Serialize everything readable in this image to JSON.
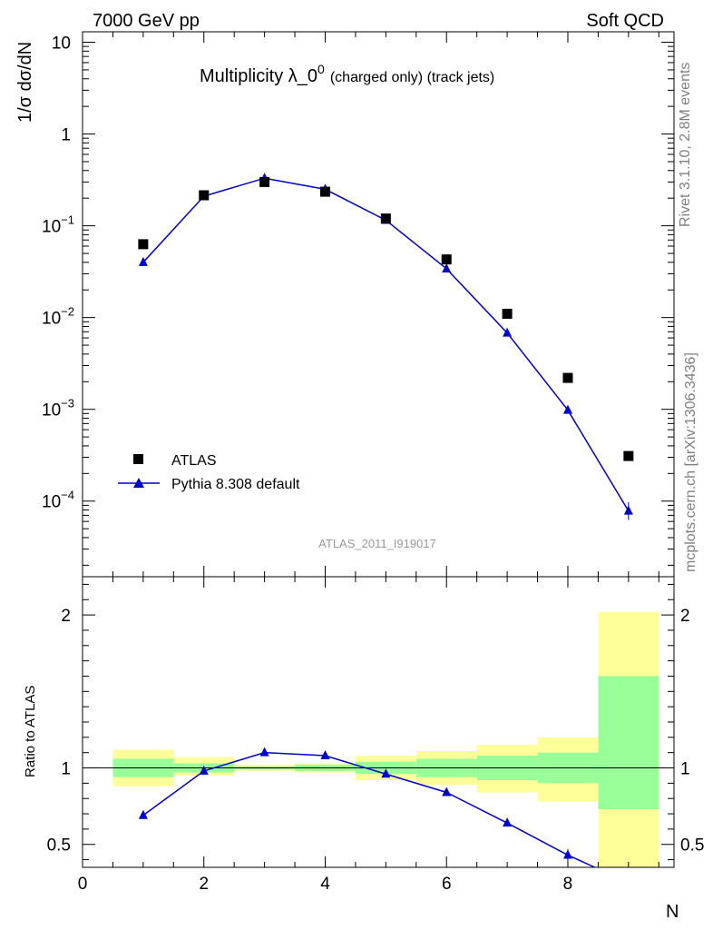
{
  "header": {
    "left": "7000 GeV pp",
    "right": "Soft QCD"
  },
  "title": {
    "main": "Multiplicity λ_0",
    "superscript": "0",
    "suffix": "(charged only) (track jets)"
  },
  "watermark": "ATLAS_2011_I919017",
  "side_labels": {
    "rivet": "Rivet 3.1.10,  2.8M events",
    "mcplots": "mcplots.cern.ch [arXiv:1306.3436]"
  },
  "axes": {
    "top_ylabel": "1/σ dσ/dN",
    "bottom_ylabel": "Ratio to ATLAS",
    "xlabel": "N",
    "x_ticks": [
      "0",
      "2",
      "4",
      "6",
      "8"
    ],
    "top_y_ticks": [
      {
        "base": "10",
        "exp": ""
      },
      {
        "base": "1",
        "exp": ""
      },
      {
        "base": "10",
        "exp": "−1"
      },
      {
        "base": "10",
        "exp": "−2"
      },
      {
        "base": "10",
        "exp": "−3"
      },
      {
        "base": "10",
        "exp": "−4"
      }
    ],
    "ratio_ticks": [
      "2",
      "1",
      "0.5"
    ]
  },
  "legend": {
    "atlas": "ATLAS",
    "pythia": "Pythia 8.308 default"
  },
  "colors": {
    "mc": "#0000cc",
    "band_inner": "#99ff99",
    "band_outer": "#ffff99",
    "data": "#000000"
  },
  "chart_data": [
    {
      "type": "scatter",
      "title": "Multiplicity λ_0^0 (charged only) (track jets)",
      "xlabel": "N",
      "ylabel": "1/σ dσ/dN",
      "yscale": "log",
      "xlim": [
        0,
        9.75
      ],
      "ylim": [
        1.5e-05,
        13
      ],
      "x": [
        1,
        2,
        3,
        4,
        5,
        6,
        7,
        8,
        9
      ],
      "series": [
        {
          "name": "ATLAS",
          "values": [
            0.063,
            0.215,
            0.3,
            0.235,
            0.12,
            0.043,
            0.011,
            0.0022,
            0.00031
          ]
        },
        {
          "name": "Pythia 8.308 default",
          "values": [
            0.04,
            0.21,
            0.33,
            0.25,
            0.115,
            0.034,
            0.0068,
            0.00098,
            7.8e-05
          ]
        }
      ]
    },
    {
      "type": "line",
      "ylabel": "Ratio to ATLAS",
      "xlabel": "N",
      "xlim": [
        0,
        9.75
      ],
      "ylim": [
        0.35,
        2.25
      ],
      "x": [
        1,
        2,
        3,
        4,
        5,
        6,
        7,
        8,
        9
      ],
      "series": [
        {
          "name": "Pythia 8.308 default",
          "values": [
            0.69,
            0.98,
            1.1,
            1.08,
            0.96,
            0.84,
            0.64,
            0.43,
            0.25
          ]
        }
      ],
      "bands": {
        "edges": [
          0.5,
          1.5,
          2.5,
          3.5,
          4.5,
          5.5,
          6.5,
          7.5,
          8.5,
          9.5
        ],
        "inner_low": [
          0.94,
          0.97,
          0.99,
          0.98,
          0.96,
          0.94,
          0.92,
          0.9,
          0.73
        ],
        "inner_high": [
          1.06,
          1.03,
          1.01,
          1.02,
          1.04,
          1.06,
          1.08,
          1.1,
          1.6
        ],
        "outer_low": [
          0.88,
          0.95,
          0.98,
          0.97,
          0.92,
          0.89,
          0.84,
          0.78,
          0.35
        ],
        "outer_high": [
          1.12,
          1.07,
          1.02,
          1.03,
          1.08,
          1.11,
          1.15,
          1.2,
          2.02
        ]
      }
    }
  ]
}
